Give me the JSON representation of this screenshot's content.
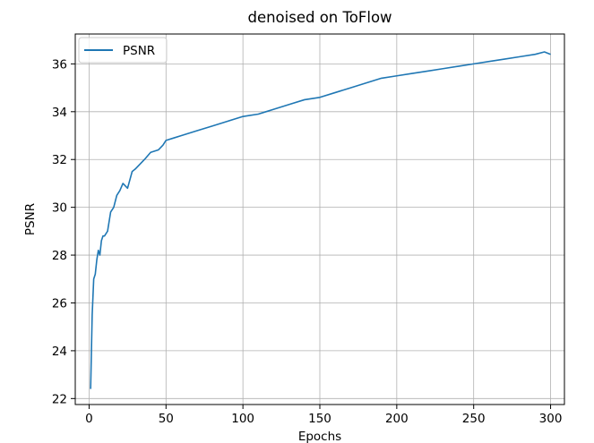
{
  "chart_data": {
    "type": "line",
    "title": "denoised on ToFlow",
    "xlabel": "Epochs",
    "ylabel": "PSNR",
    "xlim": [
      -9,
      309
    ],
    "ylim": [
      21.75,
      37.25
    ],
    "xticks": [
      0,
      50,
      100,
      150,
      200,
      250,
      300
    ],
    "yticks": [
      22,
      24,
      26,
      28,
      30,
      32,
      34,
      36
    ],
    "grid": true,
    "legend_position": "top-left",
    "colors": {
      "series": "#1f77b4",
      "grid": "#b0b0b0",
      "axes": "#000000"
    },
    "series": [
      {
        "name": "PSNR",
        "x": [
          1,
          2,
          3,
          4,
          5,
          6,
          7,
          8,
          9,
          10,
          12,
          14,
          16,
          18,
          20,
          22,
          25,
          28,
          30,
          33,
          36,
          40,
          45,
          48,
          50,
          55,
          60,
          70,
          80,
          90,
          100,
          110,
          115,
          120,
          130,
          140,
          150,
          160,
          170,
          180,
          190,
          200,
          210,
          220,
          230,
          240,
          250,
          260,
          270,
          280,
          290,
          296,
          300
        ],
        "y": [
          22.4,
          25.5,
          27.0,
          27.2,
          27.8,
          28.2,
          28.0,
          28.6,
          28.8,
          28.8,
          29.0,
          29.8,
          30.0,
          30.5,
          30.7,
          31.0,
          30.8,
          31.5,
          31.6,
          31.8,
          32.0,
          32.3,
          32.4,
          32.6,
          32.8,
          32.9,
          33.0,
          33.2,
          33.4,
          33.6,
          33.8,
          33.9,
          34.0,
          34.1,
          34.3,
          34.5,
          34.6,
          34.8,
          35.0,
          35.2,
          35.4,
          35.5,
          35.6,
          35.7,
          35.8,
          35.9,
          36.0,
          36.1,
          36.2,
          36.3,
          36.4,
          36.5,
          36.4
        ]
      }
    ]
  }
}
